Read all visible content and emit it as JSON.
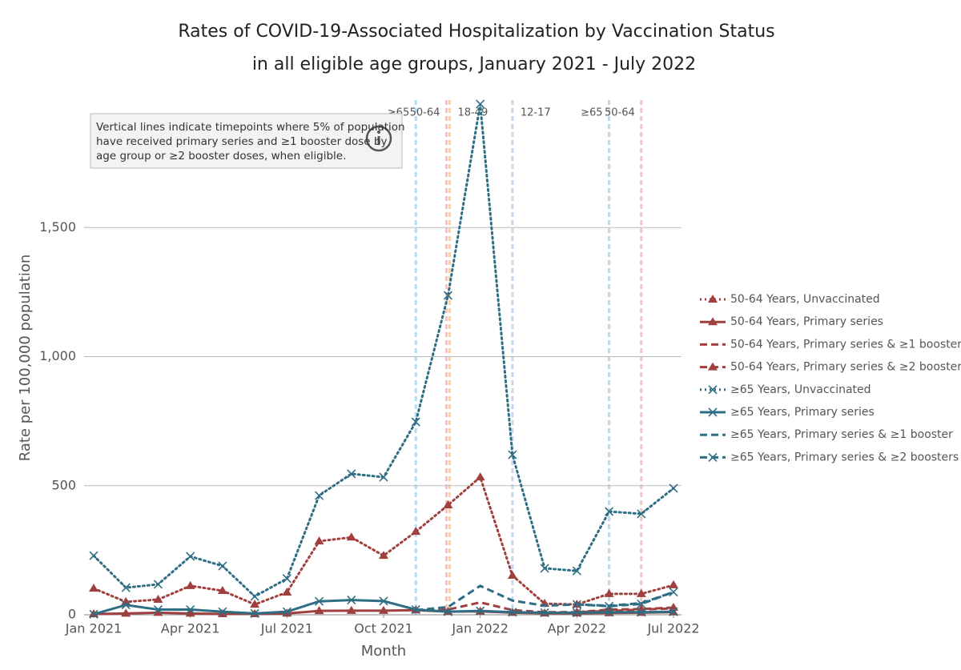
{
  "chart_data": {
    "type": "line",
    "title": "Rates of COVID-19-Associated Hospitalization by Vaccination Status",
    "subtitle": "in all eligible age groups, January 2021 - July 2022",
    "xlabel": "Month",
    "ylabel": "Rate per 100,000 population",
    "note": [
      "Vertical lines indicate timepoints where 5% of population",
      "have received primary series and ≥1 booster dose by",
      "age group or ≥2 booster doses, when eligible."
    ],
    "x": [
      0,
      1,
      2,
      3,
      4,
      5,
      6,
      7,
      8,
      9,
      10,
      11,
      12,
      13,
      14,
      15,
      16,
      17,
      18
    ],
    "xlim": [
      0,
      18
    ],
    "xticks": [
      {
        "value": 0,
        "label": "Jan 2021"
      },
      {
        "value": 3,
        "label": "Apr 2021"
      },
      {
        "value": 6,
        "label": "Jul 2021"
      },
      {
        "value": 9,
        "label": "Oct 2021"
      },
      {
        "value": 12,
        "label": "Jan 2022"
      },
      {
        "value": 15,
        "label": "Apr 2022"
      },
      {
        "value": 18,
        "label": "Jul 2022"
      }
    ],
    "ylim": [
      0,
      2000
    ],
    "yticks": [
      0,
      {
        "value": 500,
        "label": "500"
      },
      {
        "value": 1000,
        "label": "1,000"
      },
      {
        "value": 1500,
        "label": "1,500"
      }
    ],
    "grid": true,
    "legend": "right",
    "vlines": [
      {
        "x": 10,
        "label": "≥65",
        "color": "#b9d9ef",
        "label_color": "#2e6e85"
      },
      {
        "x": 10.95,
        "label": "50-64",
        "color": "#f0c6c4",
        "label_color": "#a0403e"
      },
      {
        "x": 11.05,
        "label": "18-49",
        "color": "#f6d2b4",
        "label_color": "#e8a33d"
      },
      {
        "x": 13,
        "label": "12-17",
        "color": "#c3d8ee",
        "label_color": "#3a6ea5"
      },
      {
        "x": 16,
        "label": "≥65",
        "color": "#b9d9ef",
        "label_color": "#2e6e85"
      },
      {
        "x": 17,
        "label": "50-64",
        "color": "#f0c6c4",
        "label_color": "#a0403e"
      }
    ],
    "series": [
      {
        "name": "50-64 Years, Unvaccinated",
        "color": "#a0403e",
        "dash": "dotted",
        "marker": "triangle",
        "values": [
          102,
          50,
          59,
          112,
          93,
          40,
          87,
          285,
          300,
          229,
          322,
          425,
          533,
          152,
          43,
          40,
          81,
          81,
          115
        ]
      },
      {
        "name": "50-64 Years, Primary series",
        "color": "#a0403e",
        "dash": "solid",
        "marker": "triangle",
        "values": [
          3,
          5,
          8,
          5,
          3,
          3,
          5,
          15,
          16,
          16,
          18,
          12,
          13,
          8,
          6,
          6,
          7,
          8,
          10
        ]
      },
      {
        "name": "50-64 Years, Primary series & ≥1 booster",
        "color": "#a0403e",
        "dash": "dashed",
        "marker": null,
        "values": [
          null,
          null,
          null,
          null,
          null,
          null,
          null,
          null,
          null,
          null,
          18,
          20,
          48,
          18,
          10,
          10,
          15,
          20,
          25
        ]
      },
      {
        "name": "50-64 Years, Primary series & ≥2 boosters",
        "color": "#a0403e",
        "dash": "dashed",
        "marker": "triangle",
        "values": [
          null,
          null,
          null,
          null,
          null,
          null,
          null,
          null,
          null,
          null,
          null,
          null,
          null,
          null,
          null,
          10,
          20,
          22,
          28
        ]
      },
      {
        "name": "≥65 Years, Unvaccinated",
        "color": "#2e6e85",
        "dash": "dotted",
        "marker": "x",
        "values": [
          229,
          105,
          118,
          226,
          189,
          71,
          140,
          462,
          546,
          533,
          747,
          1237,
          1978,
          620,
          180,
          170,
          400,
          391,
          490
        ]
      },
      {
        "name": "≥65 Years, Primary series",
        "color": "#2e6e85",
        "dash": "solid",
        "marker": "x",
        "values": [
          2,
          38,
          20,
          20,
          12,
          5,
          12,
          52,
          57,
          53,
          20,
          12,
          15,
          10,
          8,
          8,
          10,
          10,
          12
        ]
      },
      {
        "name": "≥65 Years, Primary series & ≥1 booster",
        "color": "#2e6e85",
        "dash": "dashed",
        "marker": null,
        "values": [
          null,
          null,
          null,
          null,
          null,
          null,
          null,
          null,
          null,
          null,
          18,
          30,
          112,
          55,
          35,
          40,
          35,
          45,
          88
        ]
      },
      {
        "name": "≥65 Years, Primary series & ≥2 boosters",
        "color": "#2e6e85",
        "dash": "dashed",
        "marker": "x",
        "values": [
          null,
          null,
          null,
          null,
          null,
          null,
          null,
          null,
          null,
          null,
          null,
          null,
          null,
          null,
          null,
          40,
          33,
          42,
          88
        ]
      }
    ]
  }
}
